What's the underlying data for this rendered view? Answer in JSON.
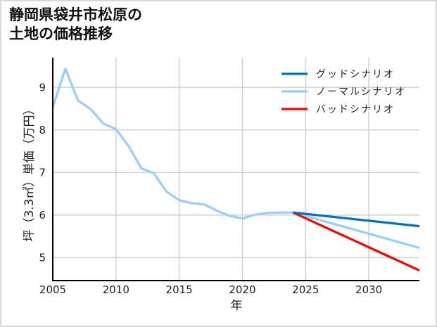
{
  "title": {
    "line1": "静岡県袋井市松原の",
    "line2": "土地の価格推移"
  },
  "colors": {
    "good": "#0070c0",
    "normal": "#99ccff",
    "bad": "#ff0000",
    "grid": "#d3d3d3",
    "axis": "#000000"
  },
  "chart_data": {
    "type": "line",
    "title": "静岡県袋井市松原の土地の価格推移",
    "xlabel": "年",
    "ylabel": "坪（3.3㎡）単価（万円）",
    "xlim": [
      2005,
      2034
    ],
    "ylim": [
      4.46,
      9.7
    ],
    "xticks": [
      2005,
      2010,
      2015,
      2020,
      2025,
      2030
    ],
    "yticks": [
      5,
      6,
      7,
      8,
      9
    ],
    "grid": true,
    "legend_position": "upper right",
    "series": [
      {
        "name": "グッドシナリオ",
        "color": "#0070c0",
        "x": [
          2024,
          2034
        ],
        "values": [
          6.06,
          5.74
        ]
      },
      {
        "name": "ノーマルシナリオ",
        "color": "#99ccff",
        "x": [
          2005,
          2006,
          2007,
          2008,
          2009,
          2010,
          2011,
          2012,
          2013,
          2014,
          2015,
          2016,
          2017,
          2018,
          2019,
          2020,
          2021,
          2022,
          2023,
          2024,
          2034
        ],
        "values": [
          8.54,
          9.44,
          8.69,
          8.49,
          8.15,
          8.02,
          7.62,
          7.1,
          6.98,
          6.55,
          6.35,
          6.28,
          6.25,
          6.1,
          5.98,
          5.92,
          6.01,
          6.05,
          6.06,
          6.06,
          5.23
        ]
      },
      {
        "name": "バッドシナリオ",
        "color": "#ff0000",
        "x": [
          2024,
          2034
        ],
        "values": [
          6.06,
          4.7
        ]
      }
    ]
  }
}
